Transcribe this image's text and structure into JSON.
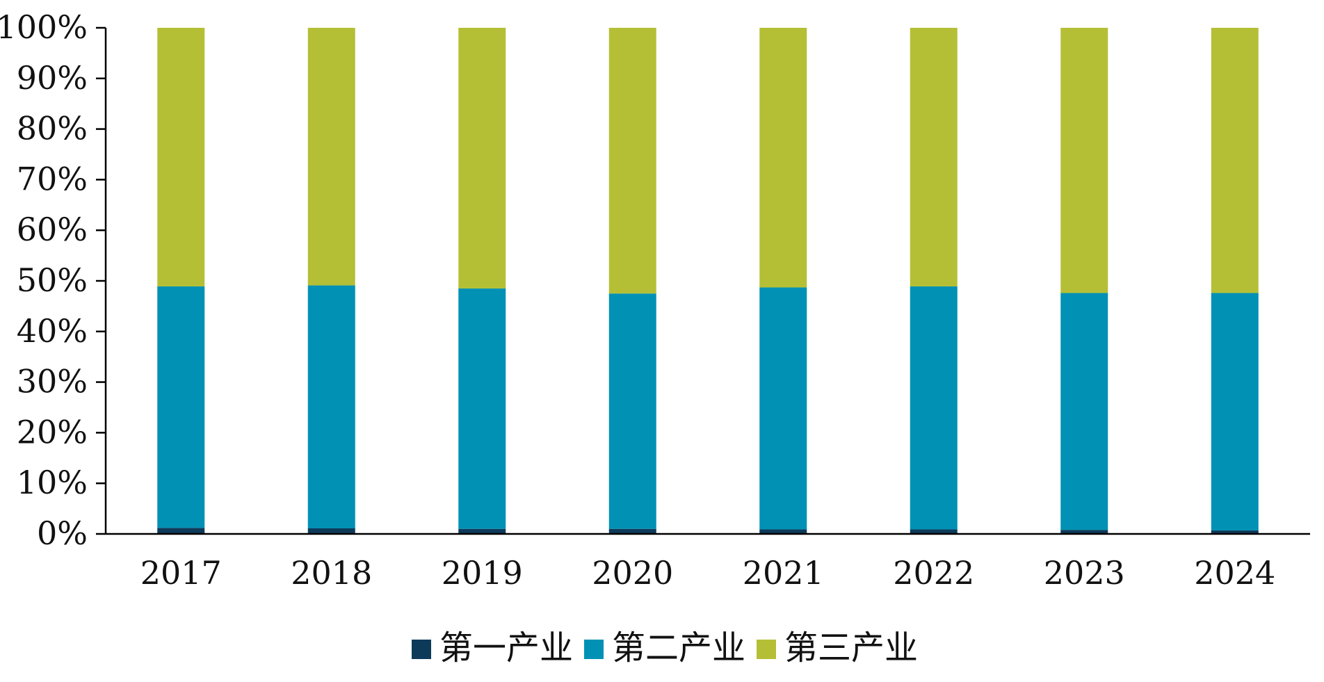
{
  "chart_data": {
    "type": "bar",
    "stacked": true,
    "categories": [
      "2017",
      "2018",
      "2019",
      "2020",
      "2021",
      "2022",
      "2023",
      "2024"
    ],
    "series": [
      {
        "name": "第一产业",
        "color": "#0e3a5a",
        "values": [
          1.2,
          1.1,
          1.0,
          1.0,
          0.9,
          0.9,
          0.8,
          0.7
        ]
      },
      {
        "name": "第二产业",
        "color": "#0191b4",
        "values": [
          47.7,
          48.0,
          47.5,
          46.5,
          47.8,
          48.0,
          46.8,
          46.9
        ]
      },
      {
        "name": "第三产业",
        "color": "#b5bf36",
        "values": [
          51.1,
          50.9,
          51.5,
          52.5,
          51.3,
          51.1,
          52.4,
          52.4
        ]
      }
    ],
    "y_ticks": [
      "0%",
      "10%",
      "20%",
      "30%",
      "40%",
      "50%",
      "60%",
      "70%",
      "80%",
      "90%",
      "100%"
    ],
    "ylim": [
      0,
      100
    ],
    "grid": false,
    "legend_position": "bottom"
  }
}
